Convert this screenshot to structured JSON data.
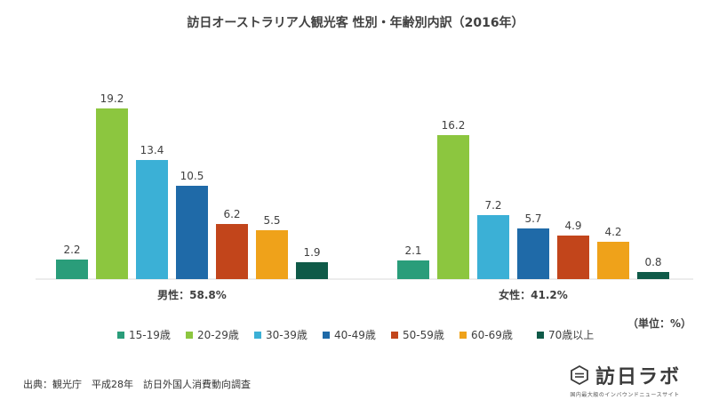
{
  "chart_data": {
    "type": "bar",
    "title": "訪日オーストラリア人観光客 性別・年齢別内訳（2016年）",
    "unit_label": "（単位：%）",
    "groups": [
      {
        "label": "男性：58.8%",
        "values": [
          2.2,
          19.2,
          13.4,
          10.5,
          6.2,
          5.5,
          1.9
        ],
        "value_labels": [
          "2.2",
          "19.2",
          "13.4",
          "10.5",
          "6.2",
          "5.5",
          "1.9"
        ]
      },
      {
        "label": "女性：41.2%",
        "values": [
          2.1,
          16.2,
          7.2,
          5.7,
          4.9,
          4.2,
          0.8
        ],
        "value_labels": [
          "2.1",
          "16.2",
          "7.2",
          "5.7",
          "4.9",
          "4.2",
          "0.8"
        ]
      }
    ],
    "series": [
      {
        "name": "15-19歳",
        "color": "#2a9d7a"
      },
      {
        "name": "20-29歳",
        "color": "#8cc63f"
      },
      {
        "name": "30-39歳",
        "color": "#3bb0d6"
      },
      {
        "name": "40-49歳",
        "color": "#1f6aa8"
      },
      {
        "name": "50-59歳",
        "color": "#c2451b"
      },
      {
        "name": "60-69歳",
        "color": "#efa21a"
      },
      {
        "name": "70歳以上",
        "color": "#0f5a48"
      }
    ],
    "ylim": [
      0,
      20
    ],
    "grid": false,
    "legend_position": "bottom"
  },
  "footer": {
    "source": "出典：観光庁　平成28年　訪日外国人消費動向調査",
    "logo_text": "訪日ラボ",
    "logo_sub": "国内最大級のインバウンドニュースサイト",
    "logo_icon": "hexagon-window-icon"
  }
}
